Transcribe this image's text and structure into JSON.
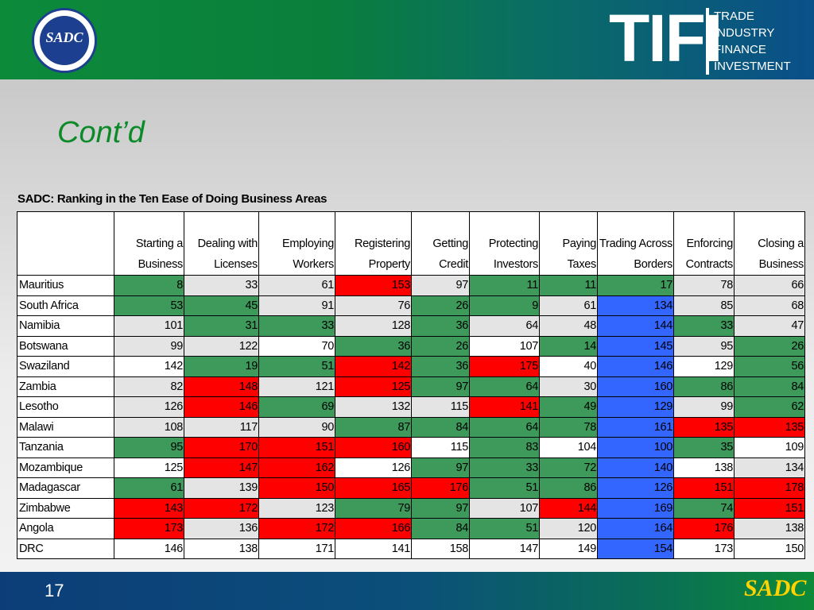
{
  "header": {
    "logo_text": "SADC",
    "brand_big": "TIFI",
    "brand_lines": [
      "TRADE",
      "INDUSTRY",
      "FINANCE",
      "INVESTMENT"
    ]
  },
  "slide": {
    "title": "Cont’d",
    "page_number": "17"
  },
  "table": {
    "caption": "SADC: Ranking in the Ten Ease of Doing Business Areas",
    "columns": [
      [
        "Starting a",
        "Business"
      ],
      [
        "Dealing with",
        "Licenses"
      ],
      [
        "Employing",
        "Workers"
      ],
      [
        "Registering",
        "Property"
      ],
      [
        "Getting",
        "Credit"
      ],
      [
        "Protecting",
        "Investors"
      ],
      [
        "Paying",
        "Taxes"
      ],
      [
        "Trading Across",
        "Borders"
      ],
      [
        "Enforcing",
        "Contracts"
      ],
      [
        "Closing a",
        "Business"
      ]
    ],
    "rows": [
      {
        "country": "Mauritius",
        "values": [
          "8",
          "33",
          "61",
          "153",
          "97",
          "11",
          "11",
          "17",
          "78",
          "66"
        ],
        "colors": [
          "g",
          "l",
          "l",
          "r",
          "l",
          "g",
          "g",
          "g",
          "l",
          "l"
        ]
      },
      {
        "country": "South Africa",
        "values": [
          "53",
          "45",
          "91",
          "76",
          "26",
          "9",
          "61",
          "134",
          "85",
          "68"
        ],
        "colors": [
          "g",
          "g",
          "l",
          "l",
          "g",
          "g",
          "l",
          "b",
          "l",
          "l"
        ]
      },
      {
        "country": "Namibia",
        "values": [
          "101",
          "31",
          "33",
          "128",
          "36",
          "64",
          "48",
          "144",
          "33",
          "47"
        ],
        "colors": [
          "l",
          "g",
          "g",
          "l",
          "g",
          "l",
          "l",
          "b",
          "g",
          "l"
        ]
      },
      {
        "country": "Botswana",
        "values": [
          "99",
          "122",
          "70",
          "36",
          "26",
          "107",
          "14",
          "145",
          "95",
          "26"
        ],
        "colors": [
          "l",
          "l",
          "w",
          "g",
          "g",
          "w",
          "g",
          "b",
          "l",
          "g"
        ]
      },
      {
        "country": "Swaziland",
        "values": [
          "142",
          "19",
          "51",
          "142",
          "36",
          "175",
          "40",
          "146",
          "129",
          "56"
        ],
        "colors": [
          "w",
          "g",
          "g",
          "r",
          "g",
          "r",
          "w",
          "b",
          "w",
          "g"
        ]
      },
      {
        "country": "Zambia",
        "values": [
          "82",
          "148",
          "121",
          "125",
          "97",
          "64",
          "30",
          "160",
          "86",
          "84"
        ],
        "colors": [
          "l",
          "r",
          "l",
          "r",
          "g",
          "g",
          "l",
          "b",
          "g",
          "g"
        ]
      },
      {
        "country": "Lesotho",
        "values": [
          "126",
          "146",
          "69",
          "132",
          "115",
          "141",
          "49",
          "129",
          "99",
          "62"
        ],
        "colors": [
          "l",
          "r",
          "g",
          "l",
          "l",
          "r",
          "g",
          "b",
          "l",
          "g"
        ]
      },
      {
        "country": "Malawi",
        "values": [
          "108",
          "117",
          "90",
          "87",
          "84",
          "64",
          "78",
          "161",
          "135",
          "135"
        ],
        "colors": [
          "l",
          "l",
          "l",
          "g",
          "g",
          "g",
          "g",
          "b",
          "r",
          "r"
        ]
      },
      {
        "country": "Tanzania",
        "values": [
          "95",
          "170",
          "151",
          "160",
          "115",
          "83",
          "104",
          "100",
          "35",
          "109"
        ],
        "colors": [
          "g",
          "r",
          "r",
          "r",
          "w",
          "g",
          "w",
          "b",
          "g",
          "w"
        ]
      },
      {
        "country": "Mozambique",
        "values": [
          "125",
          "147",
          "162",
          "126",
          "97",
          "33",
          "72",
          "140",
          "138",
          "134"
        ],
        "colors": [
          "w",
          "r",
          "r",
          "w",
          "g",
          "g",
          "g",
          "b",
          "w",
          "l"
        ]
      },
      {
        "country": "Madagascar",
        "values": [
          "61",
          "139",
          "150",
          "165",
          "176",
          "51",
          "86",
          "126",
          "151",
          "178"
        ],
        "colors": [
          "g",
          "l",
          "r",
          "r",
          "r",
          "g",
          "g",
          "b",
          "r",
          "r"
        ]
      },
      {
        "country": "Zimbabwe",
        "values": [
          "143",
          "172",
          "123",
          "79",
          "97",
          "107",
          "144",
          "169",
          "74",
          "151"
        ],
        "colors": [
          "r",
          "r",
          "l",
          "g",
          "g",
          "l",
          "r",
          "b",
          "g",
          "r"
        ]
      },
      {
        "country": "Angola",
        "values": [
          "173",
          "136",
          "172",
          "166",
          "84",
          "51",
          "120",
          "164",
          "176",
          "138"
        ],
        "colors": [
          "r",
          "l",
          "r",
          "r",
          "g",
          "g",
          "l",
          "b",
          "r",
          "l"
        ]
      },
      {
        "country": "DRC",
        "values": [
          "146",
          "138",
          "171",
          "141",
          "158",
          "147",
          "149",
          "154",
          "173",
          "150"
        ],
        "colors": [
          "w",
          "w",
          "w",
          "w",
          "w",
          "w",
          "w",
          "b",
          "w",
          "w"
        ]
      }
    ]
  },
  "colors": {
    "green": "#3d9a5a",
    "red": "#ff0000",
    "blue": "#3366ff",
    "title_green": "#0c8a2a"
  },
  "footer": {
    "logo_text": "SADC"
  }
}
